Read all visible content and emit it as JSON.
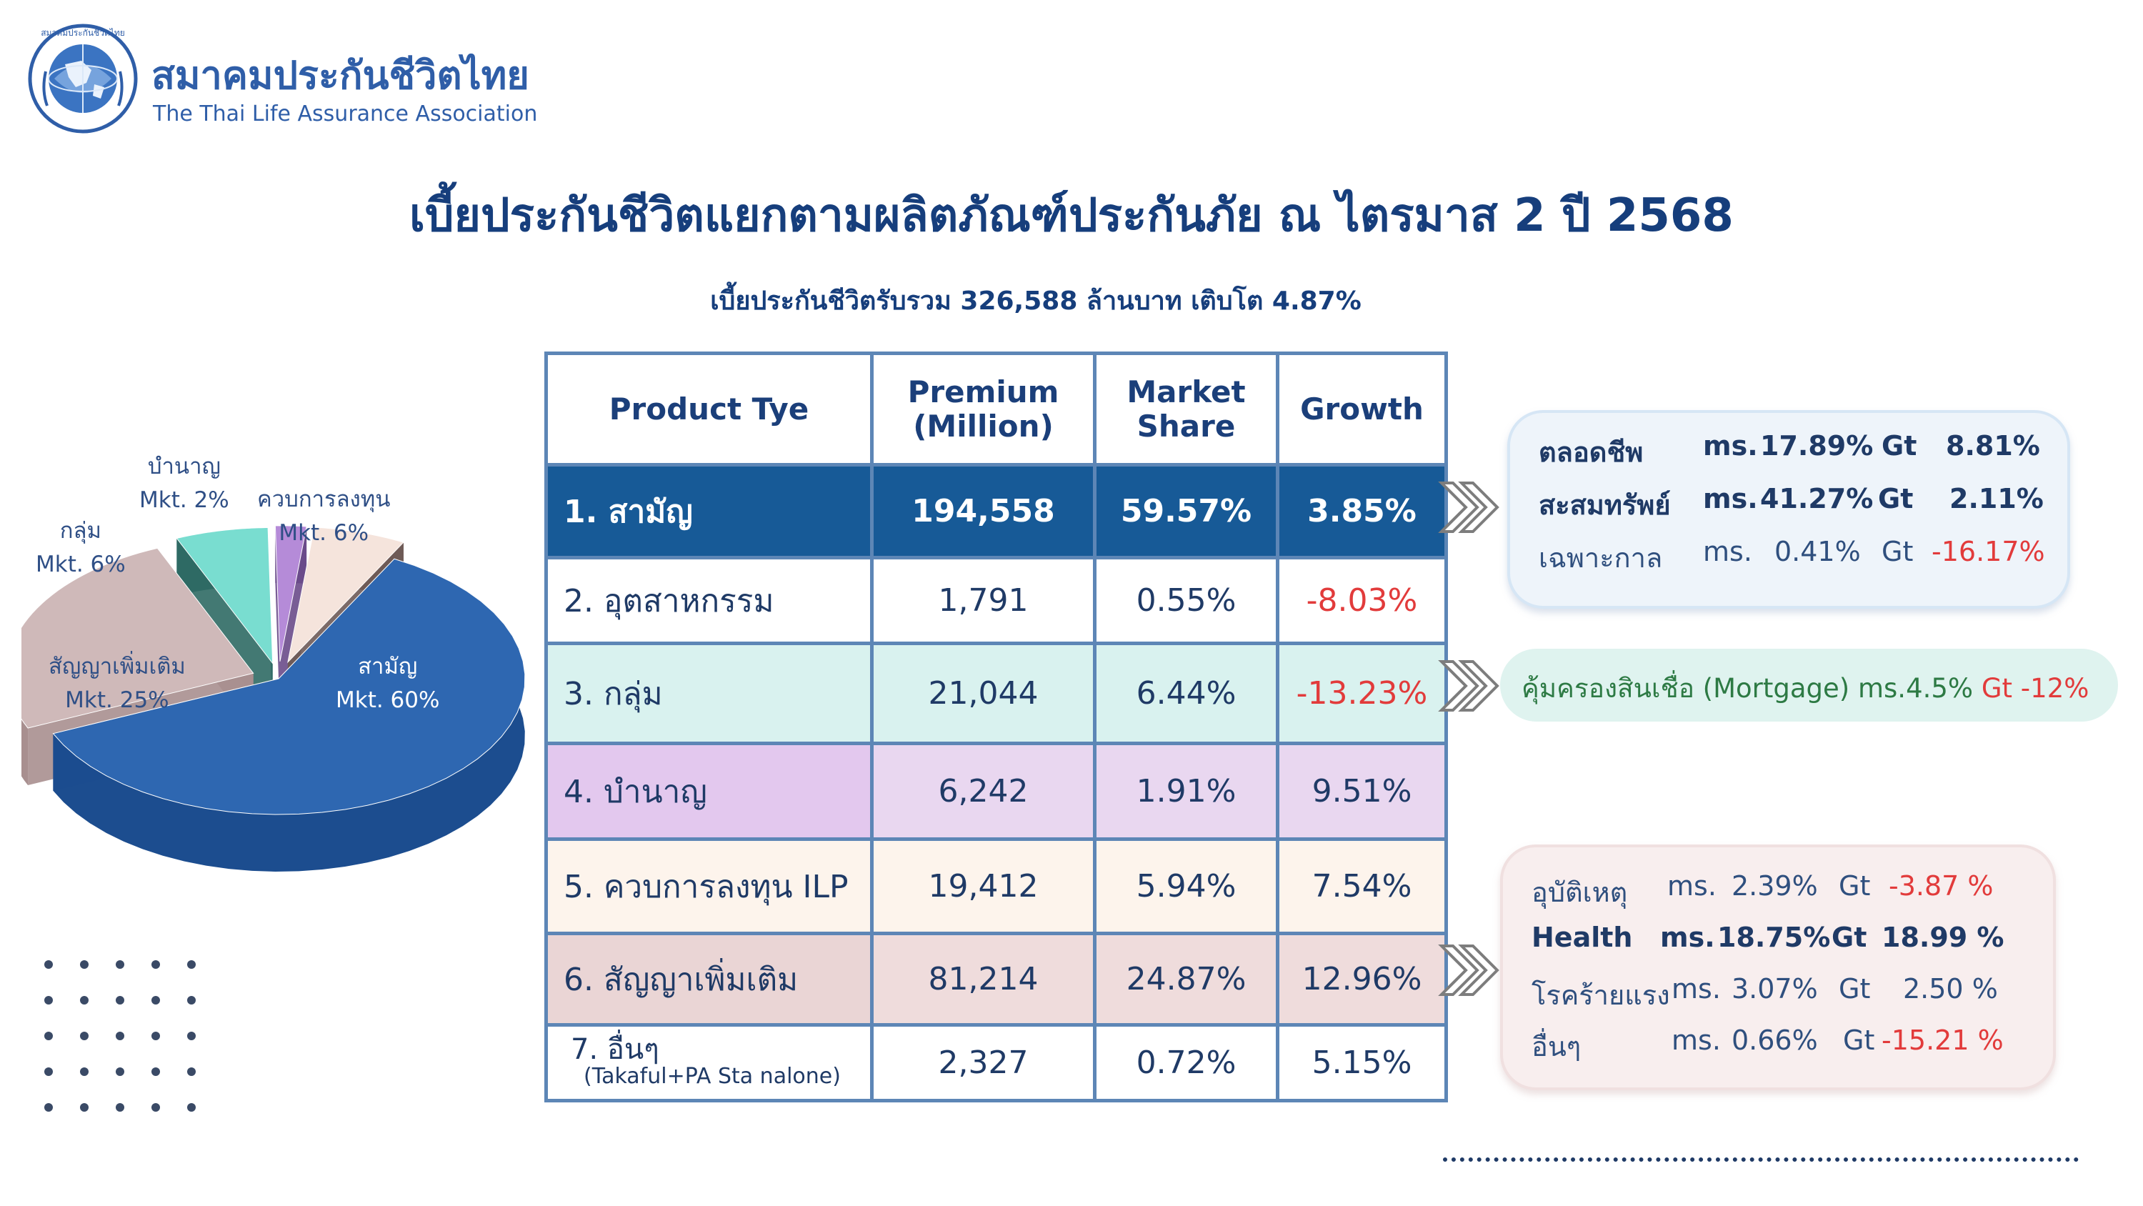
{
  "header": {
    "org_name_th": "สมาคมประกันชีวิตไทย",
    "org_name_en": "The Thai Life Assurance Association",
    "logo_ring_text": "สมาคมประกันชีวิตไทย",
    "title": "เบี้ยประกันชีวิตแยกตามผลิตภัณฑ์ประกันภัย ณ ไตรมาส 2 ปี 2568",
    "subtitle": "เบี้ยประกันชีวิตรับรวม 326,588 ล้านบาท  เติบโต 4.87%"
  },
  "chart_data": {
    "type": "pie",
    "title": "",
    "slices": [
      {
        "name": "สามัญ",
        "label": "Mkt. 60%",
        "value": 60,
        "color": "#2e67b1",
        "side_color": "#1c4d8f"
      },
      {
        "name": "สัญญาเพิ่มเติม",
        "label": "Mkt. 25%",
        "value": 25,
        "color": "#cfb9b9",
        "side_color": "#a88f8f"
      },
      {
        "name": "กลุ่ม",
        "label": "Mkt. 6%",
        "value": 6,
        "color": "#79ddd0",
        "side_color": "#2f6a64"
      },
      {
        "name": "บำนาญ",
        "label": "Mkt. 2%",
        "value": 2,
        "color": "#b58bd8",
        "side_color": "#6a4b8a"
      },
      {
        "name": "ควบการลงทุน",
        "label": "Mkt. 6%",
        "value": 6,
        "color": "#f5e4dc",
        "side_color": "#6e5a57"
      }
    ]
  },
  "table": {
    "headers": {
      "product": "Product Tye",
      "premium_line1": "Premium",
      "premium_line2": "(Million)",
      "share_line1": "Market",
      "share_line2": "Share",
      "growth": "Growth"
    },
    "rows": [
      {
        "name": "1. สามัญ",
        "premium": "194,558",
        "share": "59.57%",
        "growth": "3.85%"
      },
      {
        "name": "2. อุตสาหกรรม",
        "premium": "1,791",
        "share": "0.55%",
        "growth": "-8.03%"
      },
      {
        "name": "3. กลุ่ม",
        "premium": "21,044",
        "share": "6.44%",
        "growth": "-13.23%"
      },
      {
        "name": "4. บำนาญ",
        "premium": "6,242",
        "share": "1.91%",
        "growth": "9.51%"
      },
      {
        "name": "5. ควบการลงทุน ILP",
        "premium": "19,412",
        "share": "5.94%",
        "growth": "7.54%"
      },
      {
        "name": "6. สัญญาเพิ่มเติม",
        "premium": "81,214",
        "share": "24.87%",
        "growth": "12.96%"
      },
      {
        "name": "7. อื่นๆ",
        "name_sub": "(Takaful+PA Sta nalone)",
        "premium": "2,327",
        "share": "0.72%",
        "growth": "5.15%"
      }
    ]
  },
  "callouts": {
    "ordinary": [
      {
        "name": "ตลอดชีพ",
        "ms_label": "ms.",
        "ms": "17.89%",
        "gt_label": "Gt",
        "gt": "8.81%"
      },
      {
        "name": "สะสมทรัพย์",
        "ms_label": "ms.",
        "ms": "41.27%",
        "gt_label": "Gt",
        "gt": "2.11%"
      },
      {
        "name": "เฉพาะกาล",
        "ms_label": "ms.",
        "ms": "0.41%",
        "gt_label": "Gt",
        "gt": "-16.17%"
      }
    ],
    "group": {
      "text": "คุ้มครองสินเชื่อ (Mortgage) ms.4.5%",
      "gt_label": "Gt",
      "gt": "-12%"
    },
    "rider": [
      {
        "name": "อุบัติเหตุ",
        "ms_label": "ms.",
        "ms": "2.39%",
        "gt_label": "Gt",
        "gt": "-3.87 %"
      },
      {
        "name": "Health",
        "ms_label": "ms.",
        "ms": "18.75%",
        "gt_label": "Gt",
        "gt": "18.99 %"
      },
      {
        "name": "โรคร้ายแรง",
        "ms_label": "ms.",
        "ms": "3.07%",
        "gt_label": "Gt",
        "gt": "2.50 %"
      },
      {
        "name": "อื่นๆ",
        "ms_label": "ms.",
        "ms": "0.66%",
        "gt_label": "Gt",
        "gt": "-15.21 %"
      }
    ]
  },
  "colors": {
    "primary": "#163e7c",
    "highlight_row": "#175a97",
    "negative": "#e23b3b",
    "mortgage_text": "#2d7a44"
  }
}
